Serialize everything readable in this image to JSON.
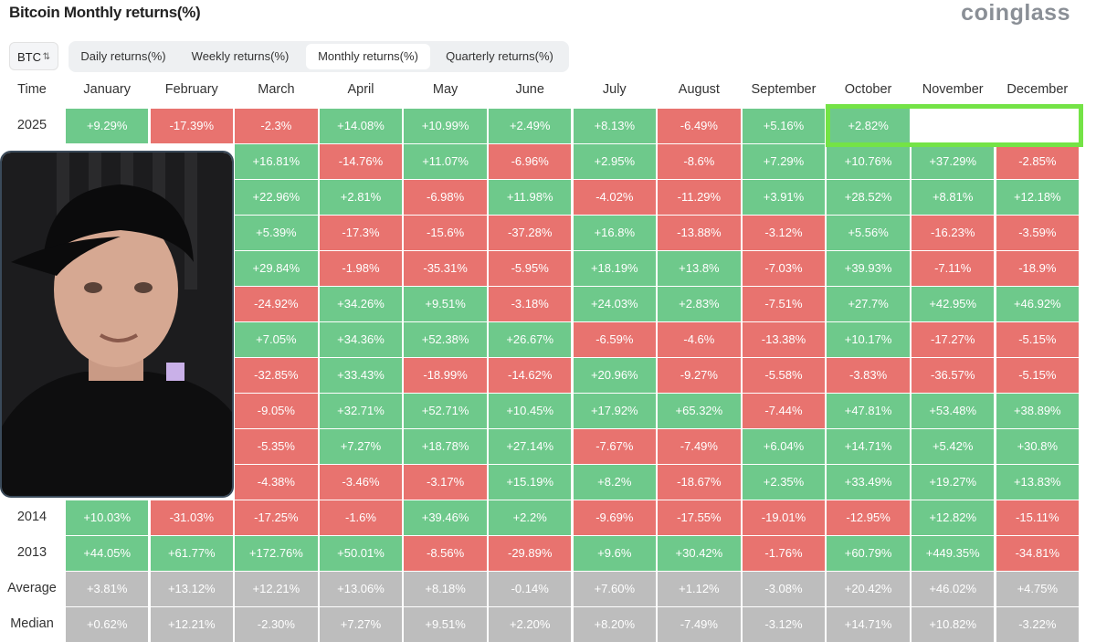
{
  "header": {
    "title": "Bitcoin Monthly returns(%)",
    "logo": "coinglass"
  },
  "controls": {
    "asset": "BTC",
    "tabs": [
      "Daily returns(%)",
      "Weekly returns(%)",
      "Monthly returns(%)",
      "Quarterly returns(%)"
    ],
    "active_tab": 2
  },
  "table": {
    "columns": [
      "Time",
      "January",
      "February",
      "March",
      "April",
      "May",
      "June",
      "July",
      "August",
      "September",
      "October",
      "November",
      "December"
    ],
    "rows": [
      {
        "label": "2025",
        "cells": [
          "+9.29%",
          "-17.39%",
          "-2.3%",
          "+14.08%",
          "+10.99%",
          "+2.49%",
          "+8.13%",
          "-6.49%",
          "+5.16%",
          "+2.82%",
          null,
          null
        ]
      },
      {
        "label": null,
        "cells": [
          null,
          null,
          "+16.81%",
          "-14.76%",
          "+11.07%",
          "-6.96%",
          "+2.95%",
          "-8.6%",
          "+7.29%",
          "+10.76%",
          "+37.29%",
          "-2.85%"
        ]
      },
      {
        "label": null,
        "cells": [
          null,
          null,
          "+22.96%",
          "+2.81%",
          "-6.98%",
          "+11.98%",
          "-4.02%",
          "-11.29%",
          "+3.91%",
          "+28.52%",
          "+8.81%",
          "+12.18%"
        ]
      },
      {
        "label": null,
        "cells": [
          null,
          null,
          "+5.39%",
          "-17.3%",
          "-15.6%",
          "-37.28%",
          "+16.8%",
          "-13.88%",
          "-3.12%",
          "+5.56%",
          "-16.23%",
          "-3.59%"
        ]
      },
      {
        "label": null,
        "cells": [
          null,
          null,
          "+29.84%",
          "-1.98%",
          "-35.31%",
          "-5.95%",
          "+18.19%",
          "+13.8%",
          "-7.03%",
          "+39.93%",
          "-7.11%",
          "-18.9%"
        ]
      },
      {
        "label": null,
        "cells": [
          null,
          null,
          "-24.92%",
          "+34.26%",
          "+9.51%",
          "-3.18%",
          "+24.03%",
          "+2.83%",
          "-7.51%",
          "+27.7%",
          "+42.95%",
          "+46.92%"
        ]
      },
      {
        "label": null,
        "cells": [
          null,
          null,
          "+7.05%",
          "+34.36%",
          "+52.38%",
          "+26.67%",
          "-6.59%",
          "-4.6%",
          "-13.38%",
          "+10.17%",
          "-17.27%",
          "-5.15%"
        ]
      },
      {
        "label": null,
        "cells": [
          null,
          null,
          "-32.85%",
          "+33.43%",
          "-18.99%",
          "-14.62%",
          "+20.96%",
          "-9.27%",
          "-5.58%",
          "-3.83%",
          "-36.57%",
          "-5.15%"
        ]
      },
      {
        "label": null,
        "cells": [
          null,
          null,
          "-9.05%",
          "+32.71%",
          "+52.71%",
          "+10.45%",
          "+17.92%",
          "+65.32%",
          "-7.44%",
          "+47.81%",
          "+53.48%",
          "+38.89%"
        ]
      },
      {
        "label": null,
        "cells": [
          null,
          null,
          "-5.35%",
          "+7.27%",
          "+18.78%",
          "+27.14%",
          "-7.67%",
          "-7.49%",
          "+6.04%",
          "+14.71%",
          "+5.42%",
          "+30.8%"
        ]
      },
      {
        "label": null,
        "cells": [
          null,
          null,
          "-4.38%",
          "-3.46%",
          "-3.17%",
          "+15.19%",
          "+8.2%",
          "-18.67%",
          "+2.35%",
          "+33.49%",
          "+19.27%",
          "+13.83%"
        ]
      },
      {
        "label": "2014",
        "cells": [
          "+10.03%",
          "-31.03%",
          "-17.25%",
          "-1.6%",
          "+39.46%",
          "+2.2%",
          "-9.69%",
          "-17.55%",
          "-19.01%",
          "-12.95%",
          "+12.82%",
          "-15.11%"
        ]
      },
      {
        "label": "2013",
        "cells": [
          "+44.05%",
          "+61.77%",
          "+172.76%",
          "+50.01%",
          "-8.56%",
          "-29.89%",
          "+9.6%",
          "+30.42%",
          "-1.76%",
          "+60.79%",
          "+449.35%",
          "-34.81%"
        ]
      }
    ],
    "summary_rows": [
      {
        "label": "Average",
        "cells": [
          "+3.81%",
          "+13.12%",
          "+12.21%",
          "+13.06%",
          "+8.18%",
          "-0.14%",
          "+7.60%",
          "+1.12%",
          "-3.08%",
          "+20.42%",
          "+46.02%",
          "+4.75%"
        ]
      },
      {
        "label": "Median",
        "cells": [
          "+0.62%",
          "+12.21%",
          "-2.30%",
          "+7.27%",
          "+9.51%",
          "+2.20%",
          "+8.20%",
          "-7.49%",
          "-3.12%",
          "+14.71%",
          "+10.82%",
          "-3.22%"
        ]
      }
    ]
  }
}
